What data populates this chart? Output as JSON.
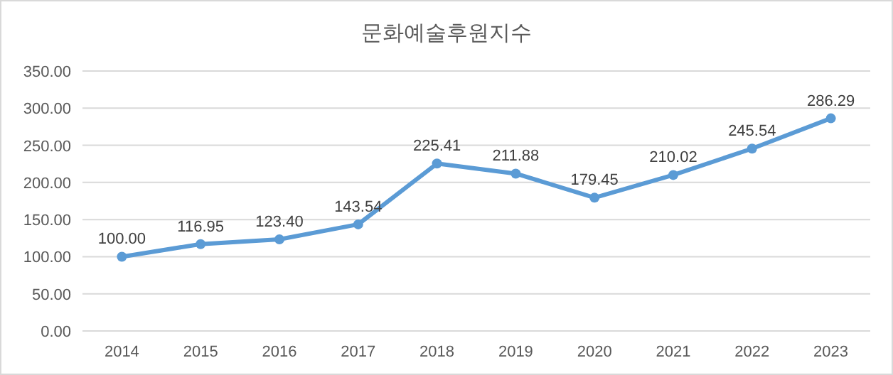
{
  "chart_data": {
    "type": "line",
    "title": "문화예술후원지수",
    "categories": [
      "2014",
      "2015",
      "2016",
      "2017",
      "2018",
      "2019",
      "2020",
      "2021",
      "2022",
      "2023"
    ],
    "values": [
      100.0,
      116.95,
      123.4,
      143.54,
      225.41,
      211.88,
      179.45,
      210.02,
      245.54,
      286.29
    ],
    "value_labels": [
      "100.00",
      "116.95",
      "123.40",
      "143.54",
      "225.41",
      "211.88",
      "179.45",
      "210.02",
      "245.54",
      "286.29"
    ],
    "color": "#5b9bd5",
    "marker": "circle",
    "line_style": "solid",
    "grid": "y",
    "ylim": [
      0,
      350
    ],
    "yticks": [
      {
        "value": 0,
        "label": "0.00"
      },
      {
        "value": 50,
        "label": "50.00"
      },
      {
        "value": 100,
        "label": "100.00"
      },
      {
        "value": 150,
        "label": "150.00"
      },
      {
        "value": 200,
        "label": "200.00"
      },
      {
        "value": 250,
        "label": "250.00"
      },
      {
        "value": 300,
        "label": "300.00"
      },
      {
        "value": 350,
        "label": "350.00"
      }
    ]
  }
}
